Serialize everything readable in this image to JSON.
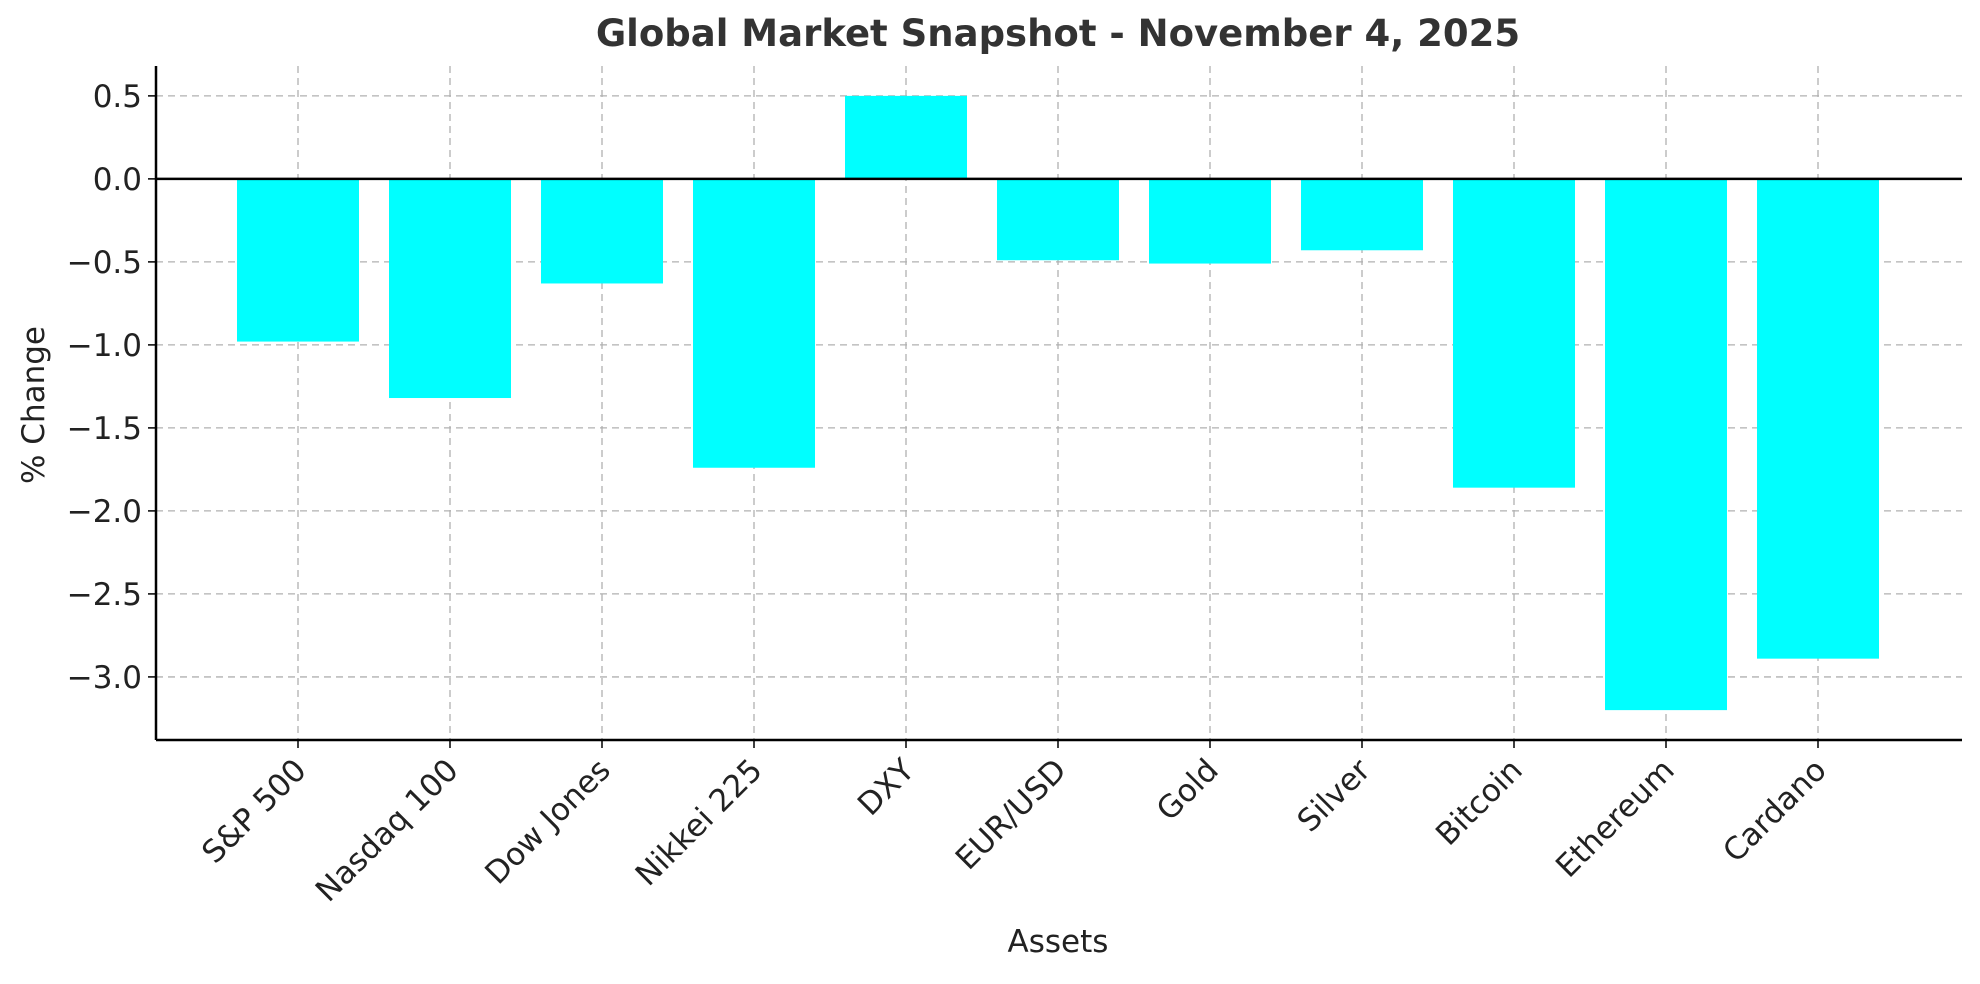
{
  "chart_data": {
    "type": "bar",
    "title": "Global Market Snapshot - November 4, 2025",
    "xlabel": "Assets",
    "ylabel": "% Change",
    "categories": [
      "S&P 500",
      "Nasdaq 100",
      "Dow Jones",
      "Nikkei 225",
      "DXY",
      "EUR/USD",
      "Gold",
      "Silver",
      "Bitcoin",
      "Ethereum",
      "Cardano"
    ],
    "values": [
      -0.98,
      -1.32,
      -0.63,
      -1.74,
      0.5,
      -0.49,
      -0.51,
      -0.43,
      -1.86,
      -3.2,
      -2.89
    ],
    "ylim": [
      -3.38,
      0.68
    ],
    "yticks": [
      0.5,
      0.0,
      -0.5,
      -1.0,
      -1.5,
      -2.0,
      -2.5,
      -3.0
    ],
    "ytick_labels": [
      "0.5",
      "0.0",
      "−0.5",
      "−1.0",
      "−1.5",
      "−2.0",
      "−2.5",
      "−3.0"
    ],
    "grid": true,
    "colors": {
      "bar": "#00ffff",
      "zero_line": "#000000",
      "grid": "#b0b0b0",
      "axis": "#000000",
      "title": "#333333",
      "text": "#222222"
    }
  }
}
